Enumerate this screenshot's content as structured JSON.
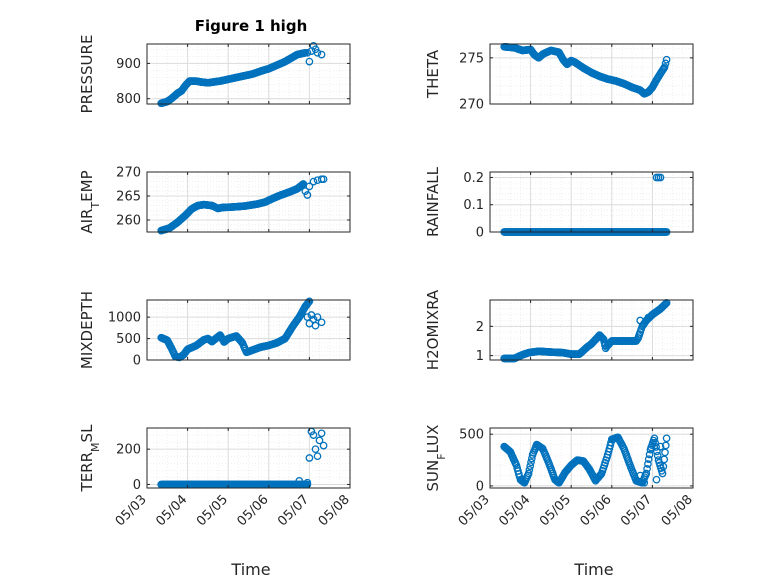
{
  "figure": {
    "title": "Figure 1 high",
    "xlabel": "Time"
  },
  "colors": {
    "marker": "#0072BD",
    "axis": "#262626",
    "grid_major": "#dcdcdc",
    "grid_minor": "#ebebeb"
  },
  "chart_data": [
    {
      "type": "scatter",
      "ylabel": "PRESSURE",
      "ylim": [
        785,
        955
      ],
      "yticks": [
        800,
        900
      ],
      "ytick_labels": [
        "800",
        "900"
      ],
      "xlim": [
        0,
        5
      ],
      "xticks": [
        0,
        1,
        2,
        3,
        4,
        5
      ],
      "xtick_labels": [],
      "grid": true,
      "has_title": true,
      "anchors": [
        [
          0.35,
          787
        ],
        [
          0.5,
          792
        ],
        [
          0.6,
          800
        ],
        [
          0.75,
          815
        ],
        [
          0.85,
          822
        ],
        [
          0.95,
          838
        ],
        [
          1.05,
          850
        ],
        [
          1.2,
          850
        ],
        [
          1.35,
          847
        ],
        [
          1.5,
          845
        ],
        [
          1.8,
          850
        ],
        [
          2.0,
          855
        ],
        [
          2.2,
          860
        ],
        [
          2.4,
          865
        ],
        [
          2.6,
          870
        ],
        [
          2.8,
          878
        ],
        [
          3.0,
          885
        ],
        [
          3.2,
          895
        ],
        [
          3.4,
          905
        ],
        [
          3.55,
          915
        ],
        [
          3.7,
          925
        ],
        [
          3.9,
          930
        ]
      ],
      "extra": [
        [
          3.95,
          930
        ],
        [
          4.0,
          905
        ],
        [
          4.05,
          935
        ],
        [
          4.1,
          950
        ],
        [
          4.15,
          940
        ],
        [
          4.2,
          930
        ],
        [
          4.3,
          925
        ]
      ]
    },
    {
      "type": "scatter",
      "ylabel": "THETA",
      "ylim": [
        270,
        276.5
      ],
      "yticks": [
        270,
        275
      ],
      "ytick_labels": [
        "270",
        "275"
      ],
      "xlim": [
        0,
        5
      ],
      "xticks": [
        0,
        1,
        2,
        3,
        4,
        5
      ],
      "xtick_labels": [],
      "grid": true,
      "anchors": [
        [
          0.35,
          276.2
        ],
        [
          0.6,
          276.1
        ],
        [
          0.8,
          275.8
        ],
        [
          1.0,
          275.9
        ],
        [
          1.1,
          275.3
        ],
        [
          1.2,
          275.0
        ],
        [
          1.3,
          275.4
        ],
        [
          1.5,
          275.8
        ],
        [
          1.7,
          275.6
        ],
        [
          1.8,
          274.8
        ],
        [
          1.9,
          274.3
        ],
        [
          2.0,
          274.7
        ],
        [
          2.1,
          274.5
        ],
        [
          2.3,
          273.9
        ],
        [
          2.5,
          273.4
        ],
        [
          2.7,
          273.0
        ],
        [
          2.9,
          272.7
        ],
        [
          3.1,
          272.5
        ],
        [
          3.3,
          272.2
        ],
        [
          3.5,
          271.8
        ],
        [
          3.7,
          271.5
        ],
        [
          3.8,
          271.1
        ],
        [
          3.9,
          271.3
        ],
        [
          4.0,
          271.8
        ],
        [
          4.1,
          272.6
        ],
        [
          4.2,
          273.3
        ],
        [
          4.3,
          274.0
        ],
        [
          4.35,
          274.8
        ]
      ],
      "extra": []
    },
    {
      "type": "scatter",
      "ylabel": "AIR_TEMP",
      "ylim": [
        257.5,
        270
      ],
      "yticks": [
        260,
        265,
        270
      ],
      "ytick_labels": [
        "260",
        "265",
        "270"
      ],
      "xlim": [
        0,
        5
      ],
      "xticks": [
        0,
        1,
        2,
        3,
        4,
        5
      ],
      "xtick_labels": [],
      "grid": true,
      "anchors": [
        [
          0.35,
          257.8
        ],
        [
          0.55,
          258.3
        ],
        [
          0.75,
          259.5
        ],
        [
          0.95,
          261.0
        ],
        [
          1.1,
          262.3
        ],
        [
          1.25,
          263.0
        ],
        [
          1.4,
          263.2
        ],
        [
          1.6,
          263.0
        ],
        [
          1.75,
          262.4
        ],
        [
          1.85,
          262.6
        ],
        [
          2.1,
          262.7
        ],
        [
          2.4,
          262.9
        ],
        [
          2.7,
          263.3
        ],
        [
          2.9,
          263.7
        ],
        [
          3.1,
          264.5
        ],
        [
          3.3,
          265.2
        ],
        [
          3.5,
          265.8
        ],
        [
          3.7,
          266.5
        ],
        [
          3.85,
          267.5
        ]
      ],
      "extra": [
        [
          3.9,
          266.0
        ],
        [
          3.95,
          265.2
        ],
        [
          4.0,
          267.0
        ],
        [
          4.1,
          268.0
        ],
        [
          4.2,
          268.3
        ],
        [
          4.3,
          268.5
        ],
        [
          4.35,
          268.5
        ]
      ]
    },
    {
      "type": "scatter",
      "ylabel": "RAINFALL",
      "ylim": [
        0,
        0.22
      ],
      "yticks": [
        0,
        0.1,
        0.2
      ],
      "ytick_labels": [
        "0",
        "0.1",
        "0.2"
      ],
      "xlim": [
        0,
        5
      ],
      "xticks": [
        0,
        1,
        2,
        3,
        4,
        5
      ],
      "xtick_labels": [],
      "grid": true,
      "anchors": [
        [
          0.35,
          0
        ],
        [
          4.35,
          0
        ]
      ],
      "extra": [
        [
          4.1,
          0.2
        ],
        [
          4.15,
          0.2
        ],
        [
          4.2,
          0.2
        ]
      ]
    },
    {
      "type": "scatter",
      "ylabel": "MIXDEPTH",
      "ylim": [
        0,
        1400
      ],
      "yticks": [
        0,
        500,
        1000
      ],
      "ytick_labels": [
        "0",
        "500",
        "1000"
      ],
      "xlim": [
        0,
        5
      ],
      "xticks": [
        0,
        1,
        2,
        3,
        4,
        5
      ],
      "xtick_labels": [],
      "grid": true,
      "anchors": [
        [
          0.35,
          520
        ],
        [
          0.5,
          460
        ],
        [
          0.6,
          280
        ],
        [
          0.7,
          80
        ],
        [
          0.8,
          60
        ],
        [
          0.9,
          120
        ],
        [
          1.0,
          250
        ],
        [
          1.2,
          330
        ],
        [
          1.4,
          470
        ],
        [
          1.5,
          500
        ],
        [
          1.6,
          430
        ],
        [
          1.8,
          580
        ],
        [
          1.9,
          420
        ],
        [
          2.0,
          500
        ],
        [
          2.2,
          560
        ],
        [
          2.35,
          400
        ],
        [
          2.45,
          180
        ],
        [
          2.6,
          230
        ],
        [
          2.8,
          300
        ],
        [
          3.0,
          340
        ],
        [
          3.2,
          400
        ],
        [
          3.4,
          500
        ],
        [
          3.6,
          800
        ],
        [
          3.75,
          1000
        ],
        [
          3.9,
          1250
        ],
        [
          4.0,
          1370
        ]
      ],
      "extra": [
        [
          3.95,
          1000
        ],
        [
          4.0,
          850
        ],
        [
          4.05,
          1050
        ],
        [
          4.1,
          950
        ],
        [
          4.15,
          800
        ],
        [
          4.2,
          1000
        ],
        [
          4.3,
          880
        ]
      ]
    },
    {
      "type": "scatter",
      "ylabel": "H2OMIXRA",
      "ylim": [
        0.85,
        2.9
      ],
      "yticks": [
        1,
        2
      ],
      "ytick_labels": [
        "1",
        "2"
      ],
      "xlim": [
        0,
        5
      ],
      "xticks": [
        0,
        1,
        2,
        3,
        4,
        5
      ],
      "xtick_labels": [],
      "grid": true,
      "anchors": [
        [
          0.35,
          0.9
        ],
        [
          0.6,
          0.9
        ],
        [
          0.75,
          1.0
        ],
        [
          0.95,
          1.1
        ],
        [
          1.2,
          1.15
        ],
        [
          1.5,
          1.12
        ],
        [
          1.8,
          1.1
        ],
        [
          2.0,
          1.05
        ],
        [
          2.2,
          1.05
        ],
        [
          2.4,
          1.3
        ],
        [
          2.5,
          1.4
        ],
        [
          2.6,
          1.55
        ],
        [
          2.7,
          1.7
        ],
        [
          2.8,
          1.55
        ],
        [
          2.85,
          1.25
        ],
        [
          2.9,
          1.35
        ],
        [
          3.0,
          1.5
        ],
        [
          3.3,
          1.5
        ],
        [
          3.6,
          1.5
        ],
        [
          3.65,
          1.6
        ],
        [
          3.7,
          1.8
        ],
        [
          3.75,
          2.0
        ],
        [
          3.85,
          2.2
        ],
        [
          4.0,
          2.4
        ],
        [
          4.2,
          2.6
        ],
        [
          4.35,
          2.8
        ]
      ],
      "extra": [
        [
          3.7,
          2.2
        ],
        [
          3.9,
          2.3
        ]
      ]
    },
    {
      "type": "scatter",
      "ylabel": "TERR_MSL",
      "ylim": [
        -20,
        320
      ],
      "yticks": [
        0,
        200
      ],
      "ytick_labels": [
        "0",
        "200"
      ],
      "xlim": [
        0,
        5
      ],
      "xticks": [
        0,
        1,
        2,
        3,
        4,
        5
      ],
      "xtick_labels": [
        "05/03",
        "05/04",
        "05/05",
        "05/06",
        "05/07",
        "05/08"
      ],
      "grid": true,
      "anchors": [
        [
          0.35,
          0
        ],
        [
          3.95,
          0
        ]
      ],
      "extra": [
        [
          3.75,
          20
        ],
        [
          3.95,
          10
        ],
        [
          4.0,
          150
        ],
        [
          4.05,
          300
        ],
        [
          4.1,
          280
        ],
        [
          4.15,
          200
        ],
        [
          4.2,
          160
        ],
        [
          4.25,
          250
        ],
        [
          4.3,
          290
        ],
        [
          4.35,
          220
        ]
      ]
    },
    {
      "type": "scatter",
      "ylabel": "SUN_FLUX",
      "ylim": [
        -20,
        560
      ],
      "yticks": [
        0,
        500
      ],
      "ytick_labels": [
        "0",
        "500"
      ],
      "xlim": [
        0,
        5
      ],
      "xticks": [
        0,
        1,
        2,
        3,
        4,
        5
      ],
      "xtick_labels": [
        "05/03",
        "05/04",
        "05/05",
        "05/06",
        "05/07",
        "05/08"
      ],
      "grid": true,
      "anchors": [
        [
          0.35,
          380
        ],
        [
          0.5,
          330
        ],
        [
          0.65,
          200
        ],
        [
          0.75,
          60
        ],
        [
          0.85,
          30
        ],
        [
          0.95,
          120
        ],
        [
          1.05,
          300
        ],
        [
          1.15,
          400
        ],
        [
          1.3,
          360
        ],
        [
          1.45,
          220
        ],
        [
          1.6,
          60
        ],
        [
          1.7,
          30
        ],
        [
          1.85,
          130
        ],
        [
          2.0,
          200
        ],
        [
          2.15,
          250
        ],
        [
          2.3,
          240
        ],
        [
          2.45,
          160
        ],
        [
          2.6,
          50
        ],
        [
          2.75,
          120
        ],
        [
          2.9,
          300
        ],
        [
          3.0,
          450
        ],
        [
          3.15,
          470
        ],
        [
          3.3,
          360
        ],
        [
          3.45,
          200
        ],
        [
          3.6,
          50
        ],
        [
          3.75,
          30
        ],
        [
          3.85,
          120
        ],
        [
          3.95,
          350
        ],
        [
          4.05,
          460
        ],
        [
          4.15,
          250
        ],
        [
          4.25,
          120
        ],
        [
          4.35,
          460
        ]
      ],
      "extra": [
        [
          3.7,
          100
        ],
        [
          3.8,
          30
        ],
        [
          4.1,
          60
        ],
        [
          4.2,
          380
        ]
      ]
    }
  ]
}
